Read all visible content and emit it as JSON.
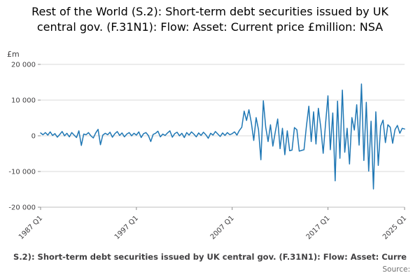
{
  "footer": {
    "caption": "S.2): Short-term debt securities issued by UK central gov. (F.31N1): Flow: Asset: Curre",
    "source_label": "Source:"
  },
  "chart_data": {
    "type": "line",
    "title": "Rest of the World (S.2): Short-term debt securities issued by UK central gov. (F.31N1): Flow: Asset: Current price £million: NSA",
    "xlabel": "",
    "ylabel": "£m",
    "ylim": [
      -20000,
      20000
    ],
    "grid": true,
    "legend": false,
    "line_color": "#1f77b4",
    "x_start": "1987 Q1",
    "x_end": "2025 Q1",
    "frequency": "quarterly",
    "yticks": [
      {
        "value": 20000,
        "label": "20 000"
      },
      {
        "value": 10000,
        "label": "10 000"
      },
      {
        "value": 0,
        "label": "0"
      },
      {
        "value": -10000,
        "label": "-10 000"
      },
      {
        "value": -20000,
        "label": "-20 000"
      }
    ],
    "xticks": [
      {
        "index": 0,
        "label": "1987 Q1"
      },
      {
        "index": 40,
        "label": "1997 Q1"
      },
      {
        "index": 80,
        "label": "2007 Q1"
      },
      {
        "index": 120,
        "label": "2017 Q1"
      },
      {
        "index": 152,
        "label": "2025 Q1"
      }
    ],
    "values": [
      800,
      300,
      900,
      200,
      1100,
      100,
      600,
      -400,
      400,
      1200,
      0,
      700,
      -300,
      900,
      200,
      -500,
      1400,
      -2700,
      500,
      300,
      900,
      0,
      -600,
      800,
      1800,
      -2500,
      200,
      700,
      300,
      1000,
      -400,
      600,
      1200,
      100,
      800,
      -300,
      500,
      900,
      0,
      700,
      200,
      1100,
      -500,
      600,
      900,
      100,
      -1600,
      400,
      700,
      1300,
      -300,
      500,
      100,
      800,
      1400,
      -400,
      600,
      1000,
      0,
      700,
      -500,
      900,
      200,
      1100,
      500,
      -300,
      800,
      100,
      1000,
      300,
      -700,
      700,
      200,
      1200,
      500,
      -200,
      800,
      100,
      900,
      300,
      600,
      1100,
      200,
      1500,
      2400,
      6900,
      4300,
      7300,
      3600,
      -1300,
      5100,
      1700,
      -6700,
      9800,
      2400,
      -1600,
      3100,
      -2900,
      1100,
      4700,
      -3600,
      2100,
      -5300,
      1400,
      -4200,
      -4000,
      2300,
      1700,
      -4300,
      -4100,
      -3900,
      2600,
      8300,
      -1600,
      6700,
      -2300,
      7700,
      2300,
      -4900,
      3400,
      11200,
      -3900,
      6400,
      -12600,
      9700,
      -6300,
      12800,
      -4600,
      2100,
      -7900,
      5100,
      1600,
      8700,
      -2600,
      14500,
      -6900,
      9400,
      -9900,
      4100,
      -14900,
      6700,
      -8300,
      2700,
      4400,
      -1900,
      3100,
      2400,
      -2100,
      1700,
      2900,
      700,
      2100,
      1900
    ]
  }
}
